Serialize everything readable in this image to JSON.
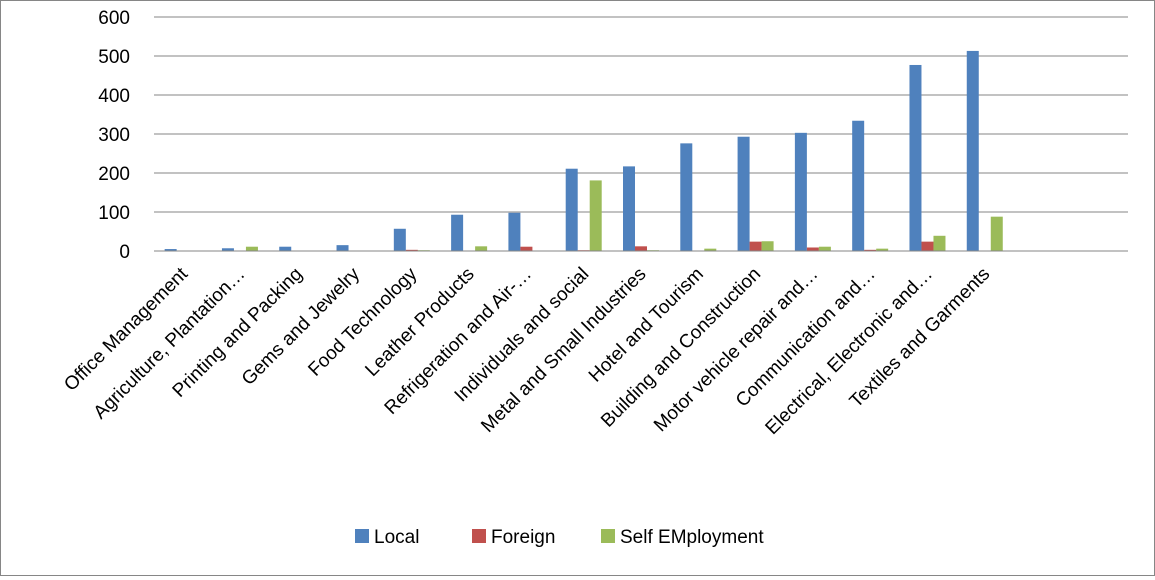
{
  "chart_data": {
    "type": "bar",
    "title": "",
    "xlabel": "",
    "ylabel": "",
    "ylim": [
      0,
      600
    ],
    "yticks": [
      0,
      100,
      200,
      300,
      400,
      500,
      600
    ],
    "grid": true,
    "legend_position": "bottom",
    "categories": [
      "Office Management",
      "Agriculture, Plantation…",
      "Printing and Packing",
      "Gems and Jewelry",
      "Food Technology",
      "Leather Products",
      "Refrigeration and Air-…",
      "Individuals and social",
      "Metal and Small Industries",
      "Hotel and Tourism",
      "Building and Construction",
      "Motor vehicle repair and…",
      "Communication and…",
      "Electrical, Electronic and…",
      "Textiles and Garments",
      "",
      ""
    ],
    "series": [
      {
        "name": "Local",
        "color": "#4F81BD",
        "values": [
          5,
          7,
          11,
          15,
          57,
          93,
          98,
          211,
          217,
          276,
          293,
          303,
          334,
          477,
          513,
          0,
          0
        ]
      },
      {
        "name": "Foreign",
        "color": "#C0504D",
        "values": [
          0,
          0,
          0,
          0,
          3,
          0,
          11,
          2,
          12,
          0,
          24,
          9,
          3,
          24,
          0,
          0,
          0
        ]
      },
      {
        "name": "Self EMployment",
        "color": "#9BBB59",
        "values": [
          0,
          11,
          0,
          0,
          2,
          12,
          0,
          181,
          2,
          6,
          25,
          11,
          6,
          39,
          88,
          0,
          0
        ]
      }
    ]
  }
}
